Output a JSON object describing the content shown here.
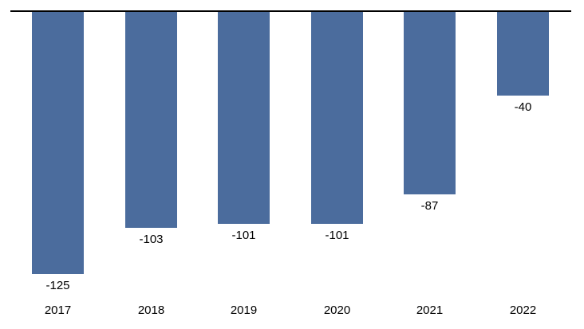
{
  "chart_data": {
    "type": "bar",
    "categories": [
      "2017",
      "2018",
      "2019",
      "2020",
      "2021",
      "2022"
    ],
    "values": [
      -125,
      -103,
      -101,
      -101,
      -87,
      -40
    ],
    "data_labels": [
      "-125",
      "-103",
      "-101",
      "-101",
      "-87",
      "-40"
    ],
    "title": "",
    "xlabel": "",
    "ylabel": "",
    "ylim": [
      -140,
      0
    ],
    "baseline_position": "top",
    "grid": false,
    "legend": false,
    "bar_color": "#4B6C9D",
    "axis_line_color": "#000000",
    "label_color": "#000000"
  }
}
